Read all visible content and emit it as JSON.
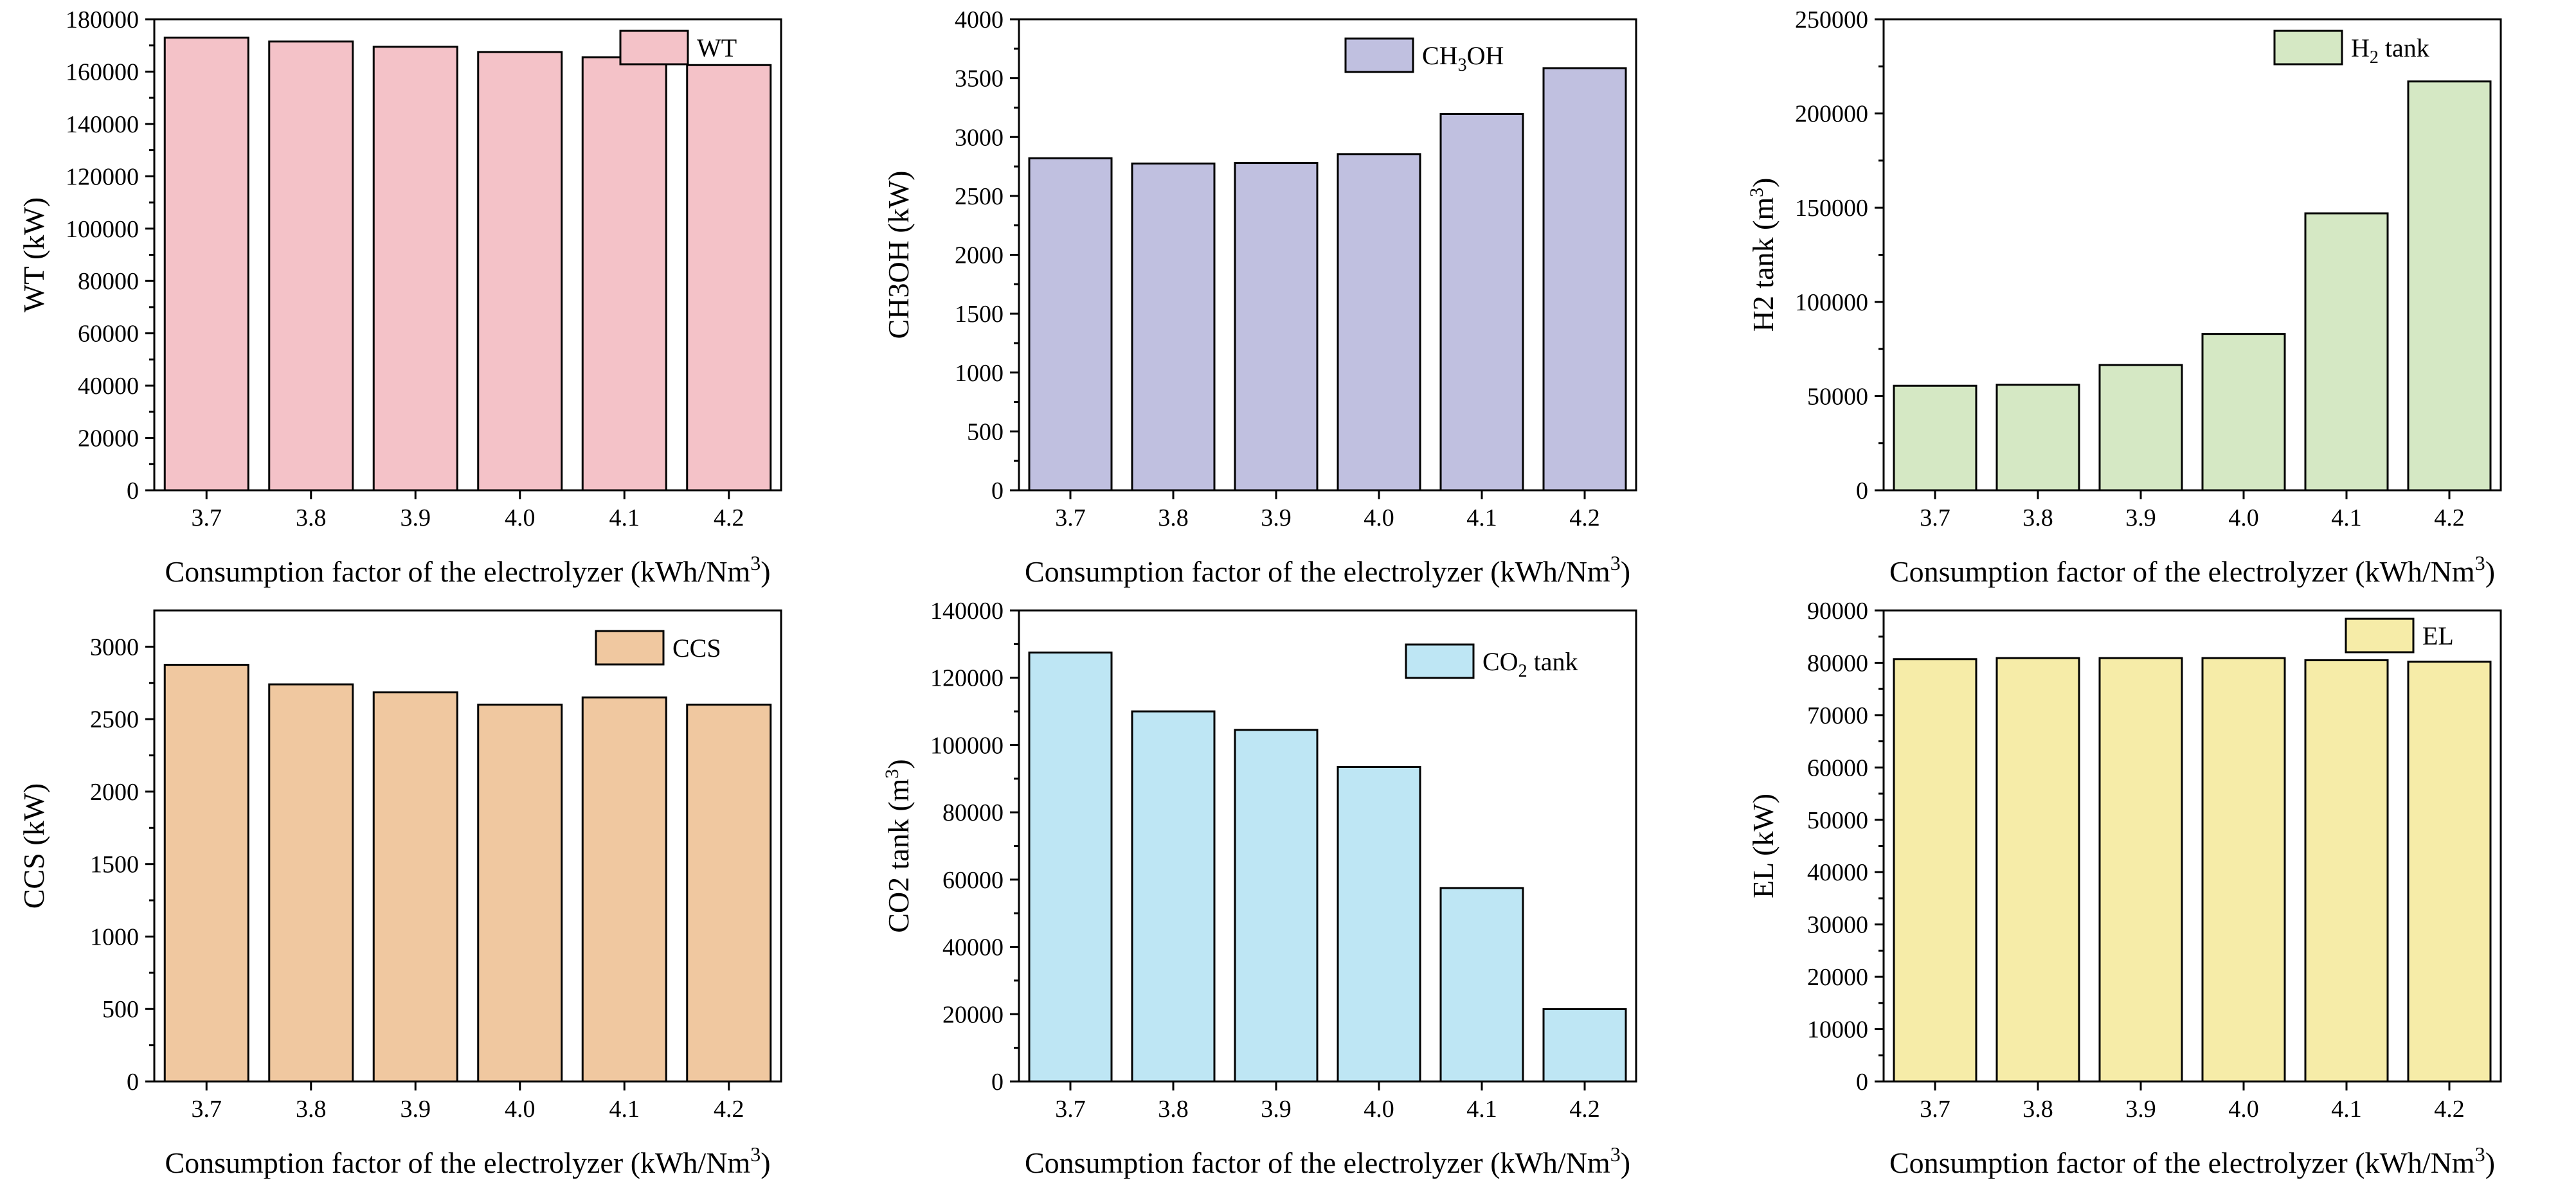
{
  "chart_data": [
    {
      "type": "bar",
      "categories": [
        "3.7",
        "3.8",
        "3.9",
        "4.0",
        "4.1",
        "4.2"
      ],
      "values": [
        173000,
        171500,
        169500,
        167500,
        165500,
        162500
      ],
      "series_name": "WT",
      "legend": {
        "text": "WT",
        "sub": "",
        "rest": ""
      },
      "ylabel": {
        "text": "WT (kW)",
        "sup": ""
      },
      "xlabel": {
        "text": "Consumption factor of the electrolyzer (kWh/Nm",
        "sup": "3",
        "rest": ")"
      },
      "ylim": [
        0,
        180000
      ],
      "yticks": [
        "0",
        "20000",
        "40000",
        "60000",
        "80000",
        "100000",
        "120000",
        "140000",
        "160000",
        "180000"
      ],
      "color": "#f4c2c8",
      "legend_position": "top-right"
    },
    {
      "type": "bar",
      "categories": [
        "3.7",
        "3.8",
        "3.9",
        "4.0",
        "4.1",
        "4.2"
      ],
      "values": [
        2820,
        2775,
        2780,
        2855,
        3195,
        3585
      ],
      "series_name": "CH3OH",
      "legend": {
        "text": "CH",
        "sub": "3",
        "rest": "OH"
      },
      "ylabel": {
        "text": "CH3OH (kW)",
        "sup": ""
      },
      "xlabel": {
        "text": "Consumption factor of the electrolyzer (kWh/Nm",
        "sup": "3",
        "rest": ")"
      },
      "ylim": [
        0,
        4000
      ],
      "yticks": [
        "0",
        "500",
        "1000",
        "1500",
        "2000",
        "2500",
        "3000",
        "3500",
        "4000"
      ],
      "color": "#c0c0e0",
      "legend_position": "top-right"
    },
    {
      "type": "bar",
      "categories": [
        "3.7",
        "3.8",
        "3.9",
        "4.0",
        "4.1",
        "4.2"
      ],
      "values": [
        55500,
        56000,
        66500,
        83000,
        147000,
        217000
      ],
      "series_name": "H2 tank",
      "legend": {
        "text": "H",
        "sub": "2",
        "rest": " tank"
      },
      "ylabel": {
        "text": "H2 tank (m",
        "sup": "3",
        "rest": ")"
      },
      "xlabel": {
        "text": "Consumption factor of the electrolyzer (kWh/Nm",
        "sup": "3",
        "rest": ")"
      },
      "ylim": [
        0,
        250000
      ],
      "yticks": [
        "0",
        "50000",
        "100000",
        "150000",
        "200000",
        "250000"
      ],
      "color": "#d5e8c4",
      "legend_position": "top-right"
    },
    {
      "type": "bar",
      "categories": [
        "3.7",
        "3.8",
        "3.9",
        "4.0",
        "4.1",
        "4.2"
      ],
      "values": [
        2875,
        2740,
        2685,
        2600,
        2650,
        2600
      ],
      "series_name": "CCS",
      "legend": {
        "text": "CCS",
        "sub": "",
        "rest": ""
      },
      "ylabel": {
        "text": "CCS (kW)",
        "sup": ""
      },
      "xlabel": {
        "text": "Consumption factor of the electrolyzer (kWh/Nm",
        "sup": "3",
        "rest": ")"
      },
      "ylim": [
        0,
        3250
      ],
      "yticks": [
        "0",
        "500",
        "1000",
        "1500",
        "2000",
        "2500",
        "3000"
      ],
      "ytick_values": [
        0,
        500,
        1000,
        1500,
        2000,
        2500,
        3000
      ],
      "color": "#f0c8a0",
      "legend_position": "top-right"
    },
    {
      "type": "bar",
      "categories": [
        "3.7",
        "3.8",
        "3.9",
        "4.0",
        "4.1",
        "4.2"
      ],
      "values": [
        127500,
        110000,
        104500,
        93500,
        57500,
        21500
      ],
      "series_name": "CO2 tank",
      "legend": {
        "text": "CO",
        "sub": "2",
        "rest": " tank"
      },
      "ylabel": {
        "text": "CO2 tank (m",
        "sup": "3",
        "rest": ")"
      },
      "xlabel": {
        "text": "Consumption factor of the electrolyzer (kWh/Nm",
        "sup": "3",
        "rest": ")"
      },
      "ylim": [
        0,
        140000
      ],
      "yticks": [
        "0",
        "20000",
        "40000",
        "60000",
        "80000",
        "100000",
        "120000",
        "140000"
      ],
      "color": "#bee6f4",
      "legend_position": "top-right"
    },
    {
      "type": "bar",
      "categories": [
        "3.7",
        "3.8",
        "3.9",
        "4.0",
        "4.1",
        "4.2"
      ],
      "values": [
        80700,
        80900,
        80900,
        80900,
        80500,
        80200
      ],
      "series_name": "EL",
      "legend": {
        "text": "EL",
        "sub": "",
        "rest": ""
      },
      "ylabel": {
        "text": "EL (kW)",
        "sup": ""
      },
      "xlabel": {
        "text": "Consumption factor of the electrolyzer (kWh/Nm",
        "sup": "3",
        "rest": ")"
      },
      "ylim": [
        0,
        90000
      ],
      "yticks": [
        "0",
        "10000",
        "20000",
        "30000",
        "40000",
        "50000",
        "60000",
        "70000",
        "80000",
        "90000"
      ],
      "color": "#f6eca8",
      "legend_position": "top-right"
    }
  ]
}
